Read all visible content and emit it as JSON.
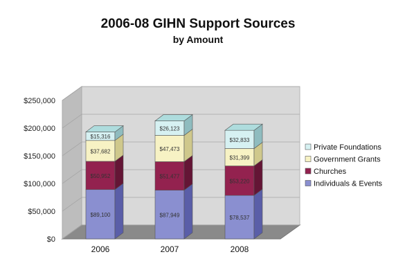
{
  "chart_data": {
    "type": "bar",
    "stacked": true,
    "three_d": true,
    "title": "2006-08 GIHN Support Sources",
    "subtitle": "by Amount",
    "categories": [
      "2006",
      "2007",
      "2008"
    ],
    "ylim": [
      0,
      250000
    ],
    "y_ticks": [
      0,
      50000,
      100000,
      150000,
      200000,
      250000
    ],
    "y_tick_labels": [
      "$0",
      "$50,000",
      "$100,000",
      "$150,000",
      "$200,000",
      "$250,000"
    ],
    "grid": true,
    "legend_position": "right",
    "series": [
      {
        "name": "Individuals & Events",
        "values": [
          89100,
          87949,
          78537
        ],
        "labels": [
          "$89,100",
          "$87,949",
          "$78,537"
        ],
        "color": "#8a8fd0",
        "side_color": "#5a5ea8",
        "top_color": "#b0b3e4"
      },
      {
        "name": "Churches",
        "values": [
          50952,
          51477,
          53220
        ],
        "labels": [
          "$50,952",
          "$51,477",
          "$53,220"
        ],
        "color": "#93224f",
        "side_color": "#641535",
        "top_color": "#b34a73"
      },
      {
        "name": "Government Grants",
        "values": [
          37682,
          47473,
          31399
        ],
        "labels": [
          "$37,682",
          "$47,473",
          "$31,399"
        ],
        "color": "#f7f2c4",
        "side_color": "#cfc88c",
        "top_color": "#fbf7dc"
      },
      {
        "name": "Private Foundations",
        "values": [
          15316,
          26123,
          32833
        ],
        "labels": [
          "$15,316",
          "$26,123",
          "$32,833"
        ],
        "color": "#d6f1f2",
        "side_color": "#8fbcbf",
        "top_color": "#aedcdd"
      }
    ]
  }
}
